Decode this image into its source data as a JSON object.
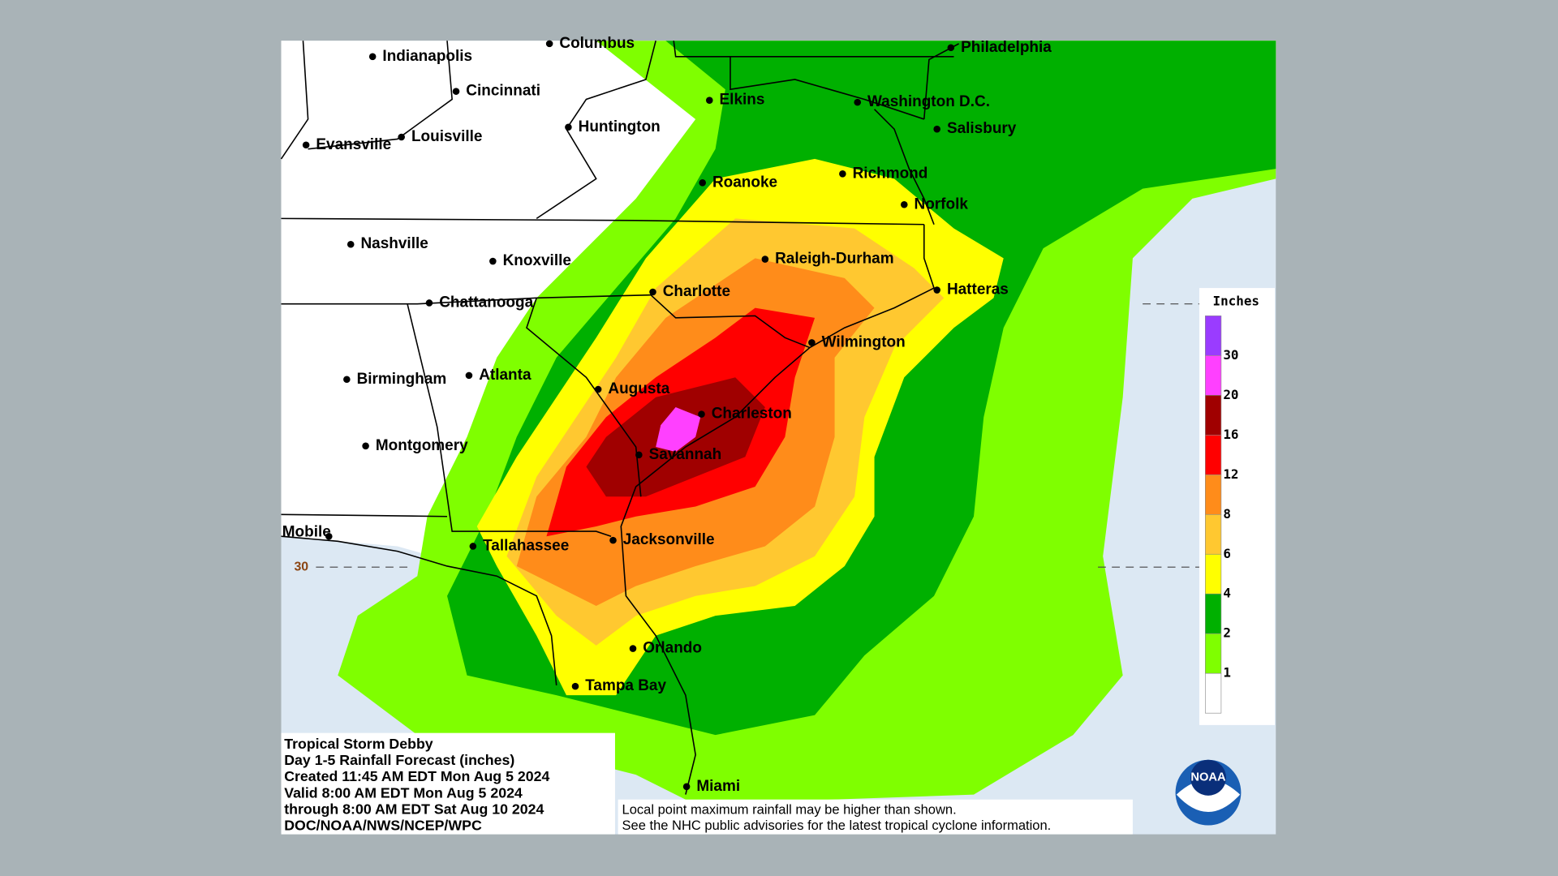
{
  "cities": [
    "Indianapolis",
    "Columbus",
    "Cincinnati",
    "Philadelphia",
    "Elkins",
    "Washington D.C.",
    "Huntington",
    "Louisville",
    "Evansville",
    "Salisbury",
    "Richmond",
    "Roanoke",
    "Norfolk",
    "Nashville",
    "Raleigh-Durham",
    "Knoxville",
    "Hatteras",
    "Charlotte",
    "Chattanooga",
    "Wilmington",
    "Atlanta",
    "Birmingham",
    "Augusta",
    "Charleston",
    "Montgomery",
    "Savannah",
    "Mobile",
    "Tallahassee",
    "Jacksonville",
    "Orlando",
    "Tampa Bay",
    "Miami"
  ],
  "legend": {
    "title": "Inches",
    "ticks": [
      30,
      20,
      16,
      12,
      8,
      6,
      4,
      2,
      1
    ],
    "colors": [
      "#9a3cff",
      "#ff40ff",
      "#a00000",
      "#ff0000",
      "#ff8c1a",
      "#ffc830",
      "#ffff00",
      "#00b000",
      "#7fff00",
      "#ffffff"
    ]
  },
  "latitude_label": "30",
  "info": {
    "lines": [
      "Tropical Storm Debby",
      "Day 1-5 Rainfall Forecast (inches)",
      "Created 11:45 AM EDT Mon Aug 5 2024",
      "Valid 8:00 AM EDT Mon Aug 5 2024",
      "through 8:00 AM EDT Sat Aug 10 2024",
      "DOC/NOAA/NWS/NCEP/WPC"
    ]
  },
  "disclaimer": {
    "lines": [
      "Local point maximum rainfall may be higher than shown.",
      "See the NHC public advisories for the latest tropical cyclone information."
    ]
  },
  "logo": "NOAA"
}
